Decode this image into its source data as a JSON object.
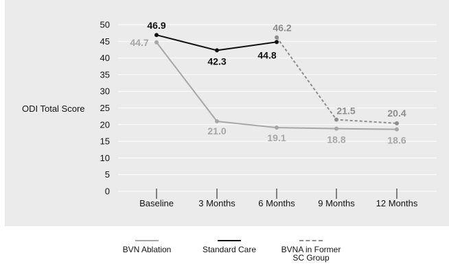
{
  "chart_data": {
    "type": "line",
    "ylabel": "ODI Total Score",
    "categories": [
      "Baseline",
      "3 Months",
      "6 Months",
      "9 Months",
      "12 Months"
    ],
    "yticks": [
      0,
      5,
      10,
      15,
      20,
      25,
      30,
      35,
      40,
      45,
      50
    ],
    "ylim": [
      0,
      50
    ],
    "grid": true,
    "legend_position": "bottom",
    "series": [
      {
        "name": "BVN Ablation",
        "color": "#a6a6a6",
        "dash": false,
        "values": [
          44.7,
          21.0,
          19.1,
          18.8,
          18.6
        ],
        "labels": [
          "44.7",
          "21.0",
          "19.1",
          "18.8",
          "18.6"
        ]
      },
      {
        "name": "Standard Care",
        "color": "#111111",
        "dash": false,
        "values": [
          46.9,
          42.3,
          44.8,
          null,
          null
        ],
        "labels": [
          "46.9",
          "42.3",
          "44.8",
          "",
          ""
        ]
      },
      {
        "name": "BVNA in Former SC Group",
        "color": "#8c8c8c",
        "dash": true,
        "values": [
          null,
          null,
          46.2,
          21.5,
          20.4
        ],
        "labels": [
          "",
          "",
          "46.2",
          "21.5",
          "20.4"
        ]
      }
    ]
  },
  "legend": {
    "items": [
      {
        "label": "BVN Ablation",
        "color": "#a6a6a6",
        "dash": false
      },
      {
        "label": "Standard Care",
        "color": "#111111",
        "dash": false
      },
      {
        "label": "BVNA in Former SC Group",
        "color": "#8c8c8c",
        "dash": true
      }
    ]
  }
}
